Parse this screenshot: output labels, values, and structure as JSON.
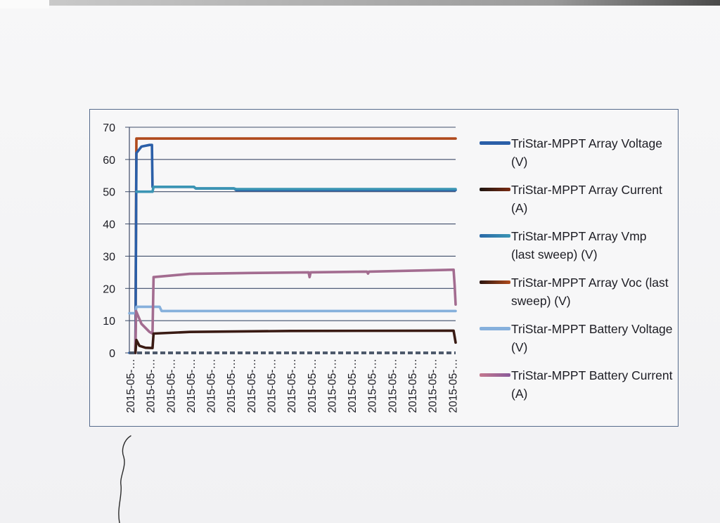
{
  "chart_data": {
    "type": "line",
    "yticks": [
      0,
      10,
      20,
      30,
      40,
      50,
      60,
      70
    ],
    "ylim": [
      0,
      70
    ],
    "x_tick_labels": [
      "2015-05-…",
      "2015-05-…",
      "2015-05-…",
      "2015-05-…",
      "2015-05-…",
      "2015-05-…",
      "2015-05-…",
      "2015-05-…",
      "2015-05-…",
      "2015-05-…",
      "2015-05-…",
      "2015-05-…",
      "2015-05-…",
      "2015-05-…",
      "2015-05-…",
      "2015-05-…",
      "2015-05-…"
    ],
    "grid": true,
    "legend_position": "right",
    "series": [
      {
        "name": "TriStar-MPPT Array Voltage (V)",
        "color": "#2b5fa8",
        "points": [
          [
            0,
            0
          ],
          [
            0.3,
            0
          ],
          [
            0.35,
            62
          ],
          [
            0.6,
            64
          ],
          [
            1.0,
            64.5
          ],
          [
            1.12,
            64.5
          ],
          [
            1.15,
            51.5
          ],
          [
            3.2,
            51.5
          ],
          [
            3.3,
            51
          ],
          [
            5.2,
            51
          ],
          [
            5.3,
            50.5
          ],
          [
            16.2,
            50.5
          ]
        ]
      },
      {
        "name": "TriStar-MPPT Array Current (A)",
        "color": "#3a1b14",
        "points": [
          [
            0.3,
            0
          ],
          [
            0.35,
            4
          ],
          [
            0.5,
            2.2
          ],
          [
            0.8,
            1.6
          ],
          [
            1.1,
            1.5
          ],
          [
            1.15,
            1.5
          ],
          [
            1.2,
            6
          ],
          [
            3.0,
            6.5
          ],
          [
            8.0,
            6.8
          ],
          [
            16.1,
            6.9
          ],
          [
            16.15,
            5
          ],
          [
            16.2,
            3.2
          ]
        ]
      },
      {
        "name": "TriStar-MPPT Array Vmp (last sweep) (V)",
        "color": "#3b95b4",
        "points": [
          [
            0.35,
            50
          ],
          [
            1.15,
            50
          ],
          [
            1.2,
            51.5
          ],
          [
            3.2,
            51.5
          ],
          [
            3.3,
            51
          ],
          [
            5.2,
            51
          ],
          [
            5.3,
            50.8
          ],
          [
            16.2,
            50.8
          ]
        ]
      },
      {
        "name": "TriStar-MPPT Array Voc (last sweep) (V)",
        "color": "#b04a1c",
        "points": [
          [
            0.3,
            0
          ],
          [
            0.35,
            66.5
          ],
          [
            16.2,
            66.5
          ]
        ]
      },
      {
        "name": "TriStar-MPPT Battery Voltage (V)",
        "color": "#86b0dc",
        "points": [
          [
            0,
            12.3
          ],
          [
            0.3,
            12.3
          ],
          [
            0.35,
            14.3
          ],
          [
            1.5,
            14.3
          ],
          [
            1.6,
            13
          ],
          [
            16.2,
            13
          ]
        ]
      },
      {
        "name": "TriStar-MPPT Battery Current (A)",
        "color": "#a36c90",
        "points": [
          [
            0.3,
            0
          ],
          [
            0.33,
            13
          ],
          [
            0.6,
            9
          ],
          [
            1.0,
            6.5
          ],
          [
            1.15,
            6
          ],
          [
            1.2,
            23.5
          ],
          [
            3.0,
            24.5
          ],
          [
            6.0,
            24.8
          ],
          [
            8.9,
            25
          ],
          [
            8.95,
            23.5
          ],
          [
            9.0,
            25
          ],
          [
            11.8,
            25.2
          ],
          [
            11.85,
            24.6
          ],
          [
            11.9,
            25.2
          ],
          [
            16.1,
            25.8
          ],
          [
            16.15,
            21
          ],
          [
            16.2,
            15
          ]
        ]
      }
    ]
  },
  "legend": {
    "items": [
      {
        "label": "TriStar-MPPT Array Voltage (V)",
        "color": "#2b5fa8"
      },
      {
        "label": "TriStar-MPPT Array Current (A)",
        "color": "#3a1b14"
      },
      {
        "label": "TriStar-MPPT Array Vmp (last sweep) (V)",
        "color": "#3b95b4"
      },
      {
        "label": "TriStar-MPPT Array Voc (last sweep) (V)",
        "color": "#b04a1c"
      },
      {
        "label": "TriStar-MPPT Battery Voltage (V)",
        "color": "#86b0dc"
      },
      {
        "label": "TriStar-MPPT Battery Current (A)",
        "color": "#a36c90"
      }
    ]
  }
}
